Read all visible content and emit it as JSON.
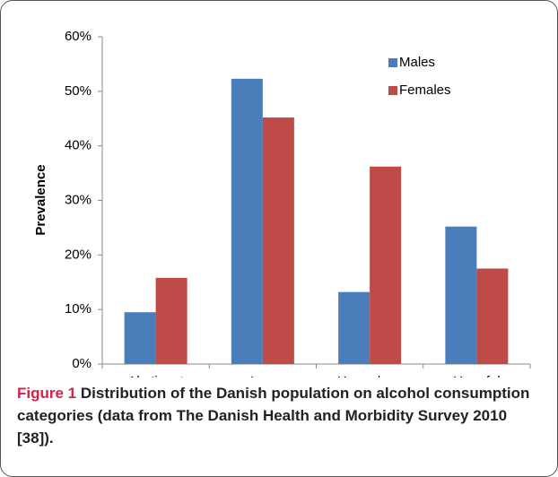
{
  "chart_data": {
    "type": "bar",
    "y_label": "Prevalence",
    "categories": [
      "Abstinent",
      "Low",
      "Hazardous",
      "Harmful"
    ],
    "series": [
      {
        "name": "Males",
        "color": "#4a7ebb",
        "values": [
          9.5,
          52.3,
          13.2,
          25.2
        ]
      },
      {
        "name": "Females",
        "color": "#be4b48",
        "values": [
          15.8,
          45.2,
          36.2,
          17.5
        ]
      }
    ],
    "ylim": [
      0,
      60
    ],
    "yticks": [
      {
        "value": 0,
        "label": "0%"
      },
      {
        "value": 10,
        "label": "10%"
      },
      {
        "value": 20,
        "label": "20%"
      },
      {
        "value": 30,
        "label": "30%"
      },
      {
        "value": 40,
        "label": "40%"
      },
      {
        "value": 50,
        "label": "50%"
      },
      {
        "value": 60,
        "label": "60%"
      }
    ],
    "grid": false,
    "legend": "upper right"
  },
  "caption": {
    "label": "Figure 1",
    "text": "Distribution of the Danish population on alcohol consumption categories (data from The Danish Health and Morbidity Survey 2010 [38])."
  }
}
